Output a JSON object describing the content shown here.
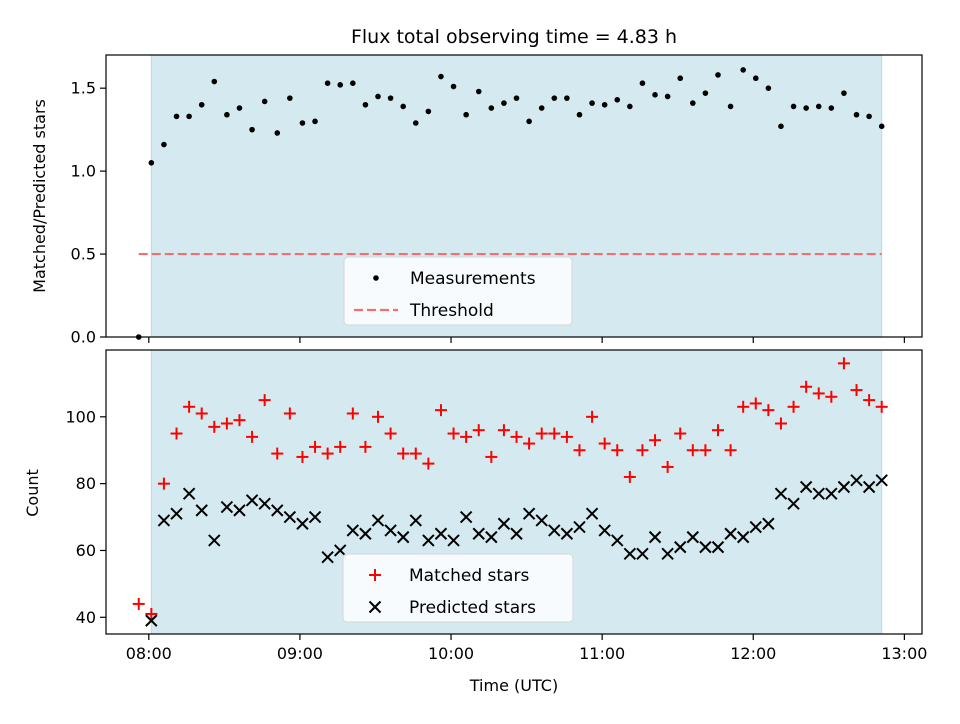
{
  "chart_data": {
    "title": "Flux total observing time = 4.83 h",
    "xlabel": "Time (UTC)",
    "x_ticks": [
      "08:00",
      "09:00",
      "10:00",
      "11:00",
      "12:00",
      "13:00"
    ],
    "xlim": [
      "07:43",
      "13:07"
    ],
    "shaded_interval": [
      "08:01",
      "12:51"
    ],
    "shaded_color": "#d4eaf0",
    "panels": [
      {
        "type": "scatter",
        "ylabel": "Matched/Predicted stars",
        "ylim": [
          0.0,
          1.7
        ],
        "y_ticks": [
          "0.0",
          "0.5",
          "1.0",
          "1.5"
        ],
        "legend_position": "lower center",
        "series": [
          {
            "name": "Measurements",
            "marker": "dot",
            "color": "#000000",
            "x": [
              "07:56",
              "08:01",
              "08:06",
              "08:11",
              "08:16",
              "08:21",
              "08:26",
              "08:31",
              "08:36",
              "08:41",
              "08:46",
              "08:51",
              "08:56",
              "09:01",
              "09:06",
              "09:11",
              "09:16",
              "09:21",
              "09:26",
              "09:31",
              "09:36",
              "09:41",
              "09:46",
              "09:51",
              "09:56",
              "10:01",
              "10:06",
              "10:11",
              "10:16",
              "10:21",
              "10:26",
              "10:31",
              "10:36",
              "10:41",
              "10:46",
              "10:51",
              "10:56",
              "11:01",
              "11:06",
              "11:11",
              "11:16",
              "11:21",
              "11:26",
              "11:31",
              "11:36",
              "11:41",
              "11:46",
              "11:51",
              "11:56",
              "12:01",
              "12:06",
              "12:11",
              "12:16",
              "12:21",
              "12:26",
              "12:31",
              "12:36",
              "12:41",
              "12:46",
              "12:51"
            ],
            "y": [
              0.0,
              1.05,
              1.16,
              1.33,
              1.33,
              1.4,
              1.54,
              1.34,
              1.38,
              1.25,
              1.42,
              1.23,
              1.44,
              1.29,
              1.3,
              1.53,
              1.52,
              1.53,
              1.4,
              1.45,
              1.44,
              1.39,
              1.29,
              1.36,
              1.57,
              1.51,
              1.34,
              1.48,
              1.38,
              1.41,
              1.44,
              1.3,
              1.38,
              1.44,
              1.44,
              1.34,
              1.41,
              1.4,
              1.43,
              1.39,
              1.53,
              1.46,
              1.45,
              1.56,
              1.41,
              1.47,
              1.58,
              1.39,
              1.61,
              1.56,
              1.5,
              1.27,
              1.39,
              1.38,
              1.39,
              1.38,
              1.47,
              1.34,
              1.33,
              1.27
            ]
          },
          {
            "name": "Threshold",
            "style": "dashed-line",
            "color": "#f07070",
            "x": [
              "07:56",
              "12:51"
            ],
            "y": [
              0.5,
              0.5
            ]
          }
        ]
      },
      {
        "type": "scatter",
        "ylabel": "Count",
        "ylim": [
          35,
          120
        ],
        "y_ticks": [
          "40",
          "60",
          "80",
          "100"
        ],
        "legend_position": "lower center",
        "series": [
          {
            "name": "Matched stars",
            "marker": "plus",
            "color": "#ff0000",
            "x": [
              "07:56",
              "08:01",
              "08:06",
              "08:11",
              "08:16",
              "08:21",
              "08:26",
              "08:31",
              "08:36",
              "08:41",
              "08:46",
              "08:51",
              "08:56",
              "09:01",
              "09:06",
              "09:11",
              "09:16",
              "09:21",
              "09:26",
              "09:31",
              "09:36",
              "09:41",
              "09:46",
              "09:51",
              "09:56",
              "10:01",
              "10:06",
              "10:11",
              "10:16",
              "10:21",
              "10:26",
              "10:31",
              "10:36",
              "10:41",
              "10:46",
              "10:51",
              "10:56",
              "11:01",
              "11:06",
              "11:11",
              "11:16",
              "11:21",
              "11:26",
              "11:31",
              "11:36",
              "11:41",
              "11:46",
              "11:51",
              "11:56",
              "12:01",
              "12:06",
              "12:11",
              "12:16",
              "12:21",
              "12:26",
              "12:31",
              "12:36",
              "12:41",
              "12:46",
              "12:51"
            ],
            "y": [
              44,
              41,
              80,
              95,
              103,
              101,
              97,
              98,
              99,
              94,
              105,
              89,
              101,
              88,
              91,
              89,
              91,
              101,
              91,
              100,
              95,
              89,
              89,
              86,
              102,
              95,
              94,
              96,
              88,
              96,
              94,
              92,
              95,
              95,
              94,
              90,
              100,
              92,
              90,
              82,
              90,
              93,
              85,
              95,
              90,
              90,
              96,
              90,
              103,
              104,
              102,
              98,
              103,
              109,
              107,
              106,
              116,
              108,
              105,
              103
            ]
          },
          {
            "name": "Predicted stars",
            "marker": "x",
            "color": "#000000",
            "x": [
              "08:01",
              "08:06",
              "08:11",
              "08:16",
              "08:21",
              "08:26",
              "08:31",
              "08:36",
              "08:41",
              "08:46",
              "08:51",
              "08:56",
              "09:01",
              "09:06",
              "09:11",
              "09:16",
              "09:21",
              "09:26",
              "09:31",
              "09:36",
              "09:41",
              "09:46",
              "09:51",
              "09:56",
              "10:01",
              "10:06",
              "10:11",
              "10:16",
              "10:21",
              "10:26",
              "10:31",
              "10:36",
              "10:41",
              "10:46",
              "10:51",
              "10:56",
              "11:01",
              "11:06",
              "11:11",
              "11:16",
              "11:21",
              "11:26",
              "11:31",
              "11:36",
              "11:41",
              "11:46",
              "11:51",
              "11:56",
              "12:01",
              "12:06",
              "12:11",
              "12:16",
              "12:21",
              "12:26",
              "12:31",
              "12:36",
              "12:41",
              "12:46",
              "12:51"
            ],
            "y": [
              39,
              69,
              71,
              77,
              72,
              63,
              73,
              72,
              75,
              74,
              72,
              70,
              68,
              70,
              58,
              60,
              66,
              65,
              69,
              66,
              64,
              69,
              63,
              65,
              63,
              70,
              65,
              64,
              68,
              65,
              71,
              69,
              66,
              65,
              67,
              71,
              66,
              63,
              59,
              59,
              64,
              59,
              61,
              64,
              61,
              61,
              65,
              64,
              67,
              68,
              77,
              74,
              79,
              77,
              77,
              79,
              81,
              79,
              81
            ]
          }
        ]
      }
    ]
  }
}
